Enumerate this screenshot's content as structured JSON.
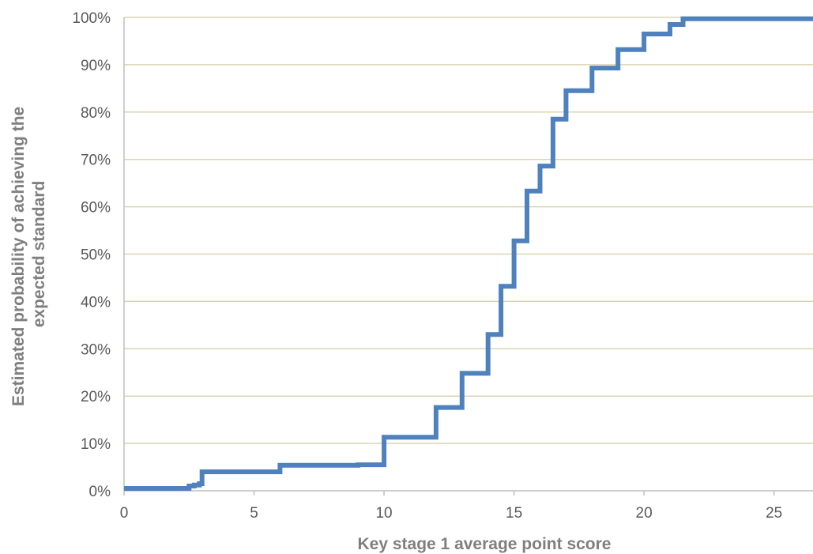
{
  "chart_data": {
    "type": "line",
    "step": true,
    "title": "",
    "xlabel": "Key stage 1 average point score",
    "ylabel_lines": [
      "Estimated probability of achieving the",
      "expected standard"
    ],
    "xlim": [
      0,
      26.5
    ],
    "ylim": [
      0,
      100
    ],
    "x_ticks": [
      0,
      5,
      10,
      15,
      20,
      25
    ],
    "y_ticks": [
      0,
      10,
      20,
      30,
      40,
      50,
      60,
      70,
      80,
      90,
      100
    ],
    "y_tick_suffix": "%",
    "grid": "horizontal",
    "legend": "none",
    "colors": {
      "series": "#4f81bd",
      "grid": "#d9d5b3",
      "axis": "#bfbfbf",
      "tick_text": "#595959",
      "title_text": "#7f7f7f"
    },
    "series": [
      {
        "x": [
          0,
          2.5,
          2.7,
          2.9,
          3,
          6,
          9,
          10,
          12,
          13,
          14,
          14.5,
          15,
          15.5,
          16,
          16.5,
          17,
          18,
          19,
          20,
          21,
          21.5,
          26.5
        ],
        "values": [
          0.5,
          1.0,
          1.2,
          1.5,
          4.0,
          5.4,
          5.5,
          11.3,
          17.6,
          24.8,
          33.0,
          43.2,
          52.8,
          63.3,
          68.6,
          78.5,
          84.5,
          89.3,
          93.2,
          96.5,
          98.5,
          99.7,
          99.7
        ]
      }
    ]
  }
}
